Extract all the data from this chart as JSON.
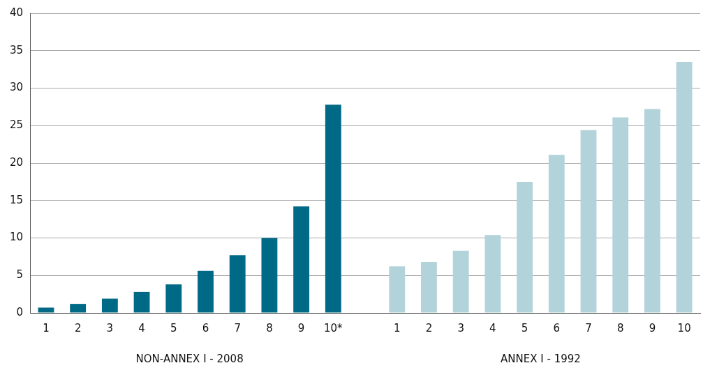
{
  "chart_data": {
    "type": "bar",
    "categories": [
      "1",
      "2",
      "3",
      "4",
      "5",
      "6",
      "7",
      "8",
      "9",
      "10*",
      null,
      "1",
      "2",
      "3",
      "4",
      "5",
      "6",
      "7",
      "8",
      "9",
      "10"
    ],
    "values": [
      0.7,
      1.2,
      1.9,
      2.8,
      3.8,
      5.6,
      7.7,
      10.0,
      14.2,
      27.8,
      null,
      6.2,
      6.8,
      8.3,
      10.4,
      17.5,
      21.1,
      24.4,
      26.1,
      27.2,
      33.5
    ],
    "colors": [
      "#006a86",
      "#006a86",
      "#006a86",
      "#006a86",
      "#006a86",
      "#006a86",
      "#006a86",
      "#006a86",
      "#006a86",
      "#006a86",
      "#006a86",
      "#b3d3da",
      "#b3d3da",
      "#b3d3da",
      "#b3d3da",
      "#b3d3da",
      "#b3d3da",
      "#b3d3da",
      "#b3d3da",
      "#b3d3da",
      "#b3d3da"
    ],
    "ylim": [
      0,
      40
    ],
    "yticks": [
      0,
      5,
      10,
      15,
      20,
      25,
      30,
      35,
      40
    ],
    "grid": "y",
    "legend": false,
    "annotations": [
      "NON-ANNEX I - 2008",
      "ANNEX I - 1992"
    ]
  }
}
